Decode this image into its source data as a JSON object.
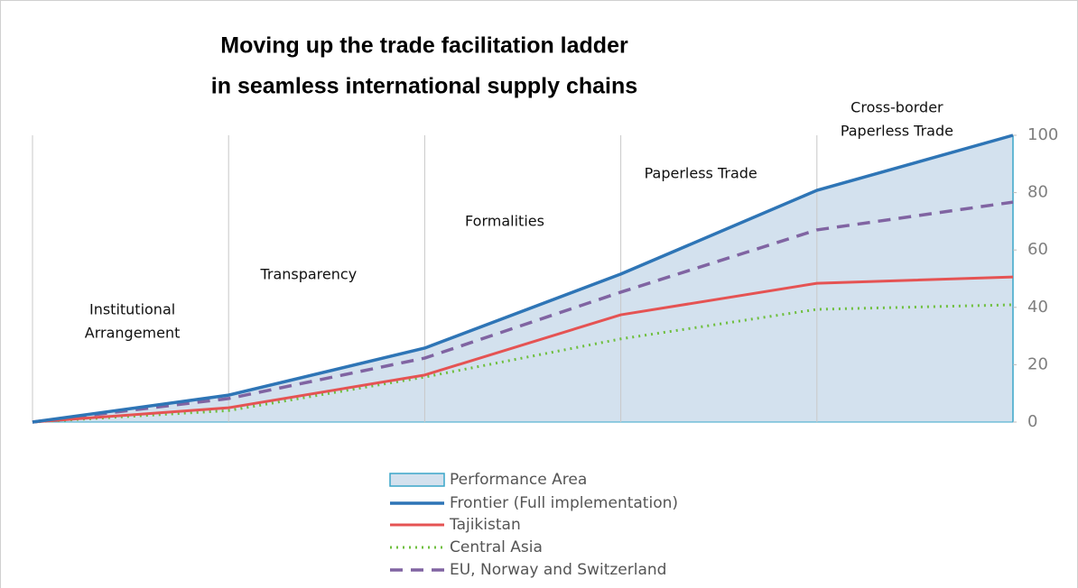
{
  "chart_data": {
    "type": "line",
    "title": [
      "Moving up the trade facilitation ladder",
      "in seamless international supply chains"
    ],
    "sections": [
      [
        "Institutional",
        "Arrangement"
      ],
      [
        "Transparency"
      ],
      [
        "Formalities"
      ],
      [
        "Paperless Trade"
      ],
      [
        "Cross-border",
        "Paperless Trade"
      ]
    ],
    "categories": [
      null,
      null,
      null,
      null,
      null,
      null
    ],
    "area": {
      "name": "Performance Area",
      "color": "#d3e1ee"
    },
    "series": [
      {
        "name": "Frontier (Full implementation)",
        "color": "#2e75b6",
        "values": [
          0,
          9.4,
          25.8,
          51.6,
          80.8,
          100
        ]
      },
      {
        "name": "Tajikistan",
        "color": "#e55353",
        "values": [
          0,
          5,
          16.4,
          37.4,
          48.4,
          50.6
        ]
      },
      {
        "name": "Central Asia",
        "color": "#6fbf3f",
        "values": [
          0,
          4,
          15.7,
          29,
          39.3,
          40.9
        ]
      },
      {
        "name": "EU, Norway and Switzerland",
        "color": "#8064a2",
        "values": [
          0,
          8.2,
          22.3,
          45.3,
          67,
          76.7
        ]
      }
    ],
    "ylim": [
      0,
      100
    ],
    "yticks": [
      0,
      20,
      40,
      60,
      80,
      100
    ]
  }
}
